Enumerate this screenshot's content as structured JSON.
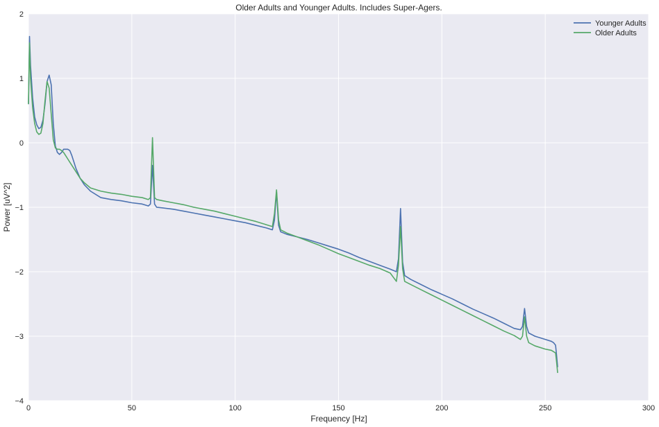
{
  "chart_data": {
    "type": "line",
    "title": "Older Adults and Younger Adults. Includes Super-Agers.",
    "xlabel": "Frequency [Hz]",
    "ylabel": "Power [uV^2]",
    "xlim": [
      0,
      300
    ],
    "ylim": [
      -4,
      2
    ],
    "xticks": [
      0,
      50,
      100,
      150,
      200,
      250,
      300
    ],
    "yticks": [
      -4,
      -3,
      -2,
      -1,
      0,
      1,
      2
    ],
    "xtick_labels": [
      "0",
      "50",
      "100",
      "150",
      "200",
      "250",
      "300"
    ],
    "ytick_labels": [
      "−4",
      "−3",
      "−2",
      "−1",
      "0",
      "1",
      "2"
    ],
    "grid": true,
    "background": "#eaeaf2",
    "legend_position": "top-right",
    "series": [
      {
        "name": "Younger Adults",
        "color": "#4c72b0",
        "x": [
          0,
          0.5,
          1,
          2,
          3,
          4,
          5,
          6,
          7,
          8,
          9,
          10,
          11,
          12,
          13,
          14,
          15,
          16,
          17,
          18,
          19,
          20,
          21,
          22,
          23,
          25,
          27,
          30,
          35,
          40,
          45,
          50,
          55,
          58,
          59,
          60,
          61,
          62,
          65,
          70,
          75,
          80,
          85,
          90,
          95,
          100,
          105,
          110,
          115,
          118,
          119,
          120,
          121,
          122,
          125,
          130,
          135,
          140,
          145,
          150,
          155,
          160,
          165,
          170,
          175,
          178,
          179,
          180,
          181,
          182,
          185,
          190,
          195,
          200,
          205,
          210,
          215,
          220,
          225,
          230,
          235,
          238,
          239,
          240,
          241,
          242,
          245,
          250,
          253,
          254,
          255,
          255.5,
          256
        ],
        "y": [
          0.6,
          1.65,
          1.2,
          0.7,
          0.4,
          0.28,
          0.22,
          0.24,
          0.35,
          0.6,
          0.95,
          1.05,
          0.9,
          0.3,
          -0.05,
          -0.15,
          -0.18,
          -0.15,
          -0.1,
          -0.1,
          -0.1,
          -0.12,
          -0.2,
          -0.3,
          -0.4,
          -0.55,
          -0.65,
          -0.75,
          -0.85,
          -0.88,
          -0.9,
          -0.93,
          -0.95,
          -0.98,
          -0.95,
          -0.35,
          -0.95,
          -1.0,
          -1.01,
          -1.03,
          -1.06,
          -1.09,
          -1.12,
          -1.15,
          -1.18,
          -1.21,
          -1.24,
          -1.28,
          -1.32,
          -1.35,
          -1.2,
          -0.76,
          -1.28,
          -1.38,
          -1.42,
          -1.46,
          -1.5,
          -1.55,
          -1.6,
          -1.65,
          -1.71,
          -1.78,
          -1.84,
          -1.9,
          -1.96,
          -2.0,
          -1.8,
          -1.02,
          -1.85,
          -2.06,
          -2.12,
          -2.2,
          -2.28,
          -2.35,
          -2.42,
          -2.5,
          -2.58,
          -2.65,
          -2.72,
          -2.8,
          -2.88,
          -2.9,
          -2.85,
          -2.57,
          -2.85,
          -2.95,
          -3.0,
          -3.05,
          -3.08,
          -3.1,
          -3.14,
          -3.3,
          -3.48
        ]
      },
      {
        "name": "Older Adults",
        "color": "#55a868",
        "x": [
          0,
          0.5,
          1,
          2,
          3,
          4,
          5,
          6,
          7,
          8,
          9,
          10,
          11,
          12,
          13,
          14,
          15,
          16,
          17,
          18,
          19,
          20,
          21,
          22,
          23,
          25,
          27,
          30,
          35,
          40,
          45,
          50,
          55,
          58,
          59,
          60,
          61,
          62,
          65,
          70,
          75,
          80,
          85,
          90,
          95,
          100,
          105,
          110,
          115,
          118,
          119,
          120,
          121,
          122,
          125,
          130,
          135,
          140,
          145,
          150,
          155,
          160,
          165,
          170,
          175,
          178,
          179,
          180,
          181,
          182,
          185,
          190,
          195,
          200,
          205,
          210,
          215,
          220,
          225,
          230,
          235,
          238,
          239,
          240,
          241,
          242,
          245,
          250,
          253,
          254,
          255,
          255.5,
          256
        ],
        "y": [
          0.6,
          1.55,
          1.0,
          0.55,
          0.3,
          0.17,
          0.13,
          0.15,
          0.3,
          0.65,
          0.95,
          0.85,
          0.45,
          0.05,
          -0.08,
          -0.1,
          -0.1,
          -0.12,
          -0.15,
          -0.2,
          -0.25,
          -0.3,
          -0.35,
          -0.4,
          -0.45,
          -0.55,
          -0.62,
          -0.7,
          -0.75,
          -0.78,
          -0.8,
          -0.83,
          -0.85,
          -0.88,
          -0.85,
          0.08,
          -0.85,
          -0.88,
          -0.9,
          -0.93,
          -0.96,
          -1.0,
          -1.03,
          -1.06,
          -1.1,
          -1.14,
          -1.18,
          -1.22,
          -1.27,
          -1.3,
          -1.1,
          -0.73,
          -1.2,
          -1.35,
          -1.4,
          -1.46,
          -1.52,
          -1.58,
          -1.65,
          -1.72,
          -1.78,
          -1.84,
          -1.9,
          -1.95,
          -2.02,
          -2.15,
          -1.9,
          -1.3,
          -1.95,
          -2.15,
          -2.2,
          -2.28,
          -2.36,
          -2.44,
          -2.52,
          -2.6,
          -2.68,
          -2.76,
          -2.84,
          -2.92,
          -2.99,
          -3.05,
          -3.0,
          -2.7,
          -3.0,
          -3.1,
          -3.15,
          -3.2,
          -3.22,
          -3.24,
          -3.26,
          -3.4,
          -3.57
        ]
      }
    ]
  }
}
